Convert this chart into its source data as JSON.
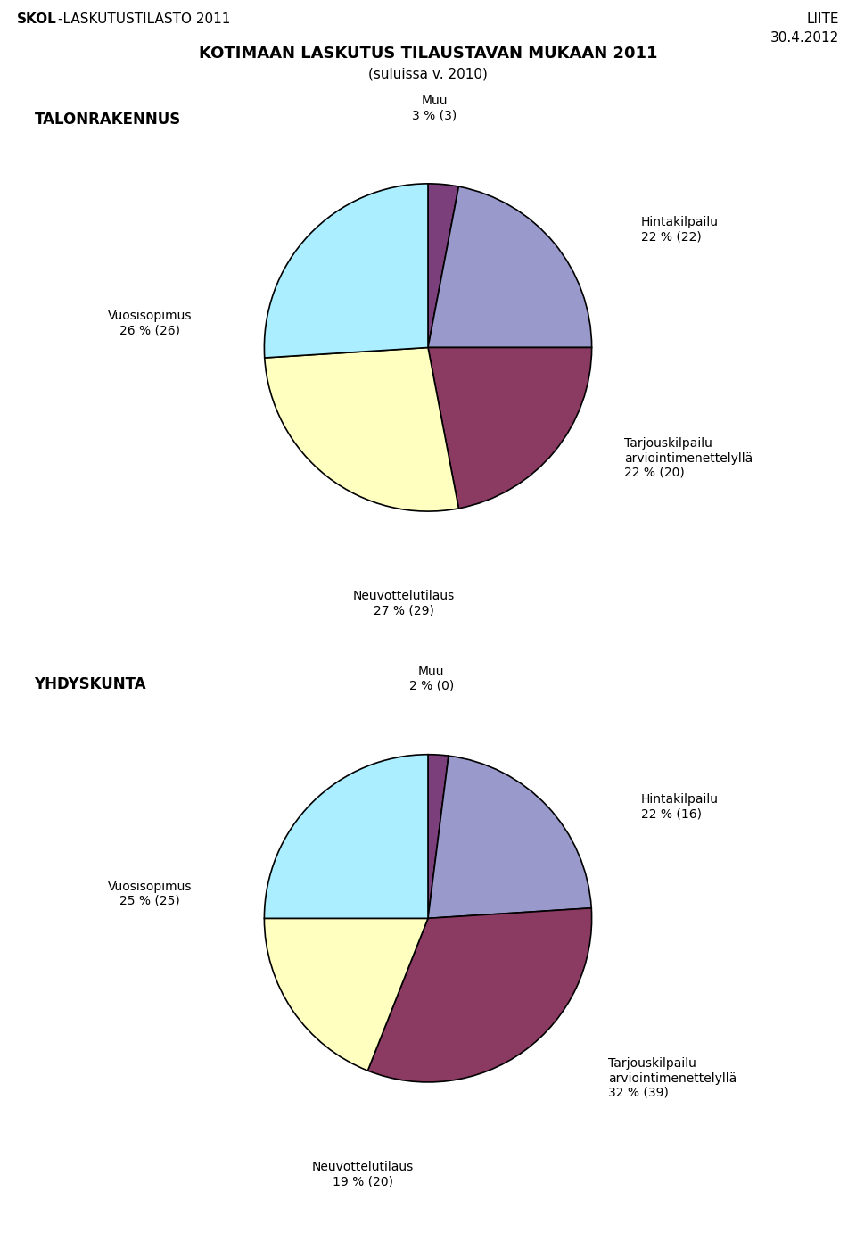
{
  "title_main": "KOTIMAAN LASKUTUS TILAUSTAVAN MUKAAN 2011",
  "title_sub": "(suluissa v. 2010)",
  "header_left_bold": "SKOL",
  "header_left_rest": "-LASKUTUSTILASTO 2011",
  "header_right_line1": "LIITE",
  "header_right_line2": "30.4.2012",
  "chart1_title": "TALONRAKENNUS",
  "chart1_values": [
    3,
    22,
    22,
    27,
    26
  ],
  "chart1_colors": [
    "#7B3F7B",
    "#9999CC",
    "#8B3A62",
    "#FFFFC0",
    "#AAEEFF"
  ],
  "chart1_labels": [
    "Muu\n3 % (3)",
    "Hintakilpailu\n22 % (22)",
    "Tarjouskilpailu\narviointimenettelyllä\n22 % (20)",
    "Neuvottelutilaus\n27 % (29)",
    "Vuosisopimus\n26 % (26)"
  ],
  "chart2_title": "YHDYSKUNTA",
  "chart2_values": [
    2,
    22,
    32,
    19,
    25
  ],
  "chart2_colors": [
    "#7B3F7B",
    "#9999CC",
    "#8B3A62",
    "#FFFFC0",
    "#AAEEFF"
  ],
  "chart2_labels": [
    "Muu\n2 % (0)",
    "Hintakilpailu\n22 % (16)",
    "Tarjouskilpailu\narviointimenettelyllä\n32 % (39)",
    "Neuvottelutilaus\n19 % (20)",
    "Vuosisopimus\n25 % (25)"
  ],
  "bg_color": "#FFFFFF",
  "text_color": "#000000",
  "label_fontsize": 10,
  "title_fontsize": 13
}
